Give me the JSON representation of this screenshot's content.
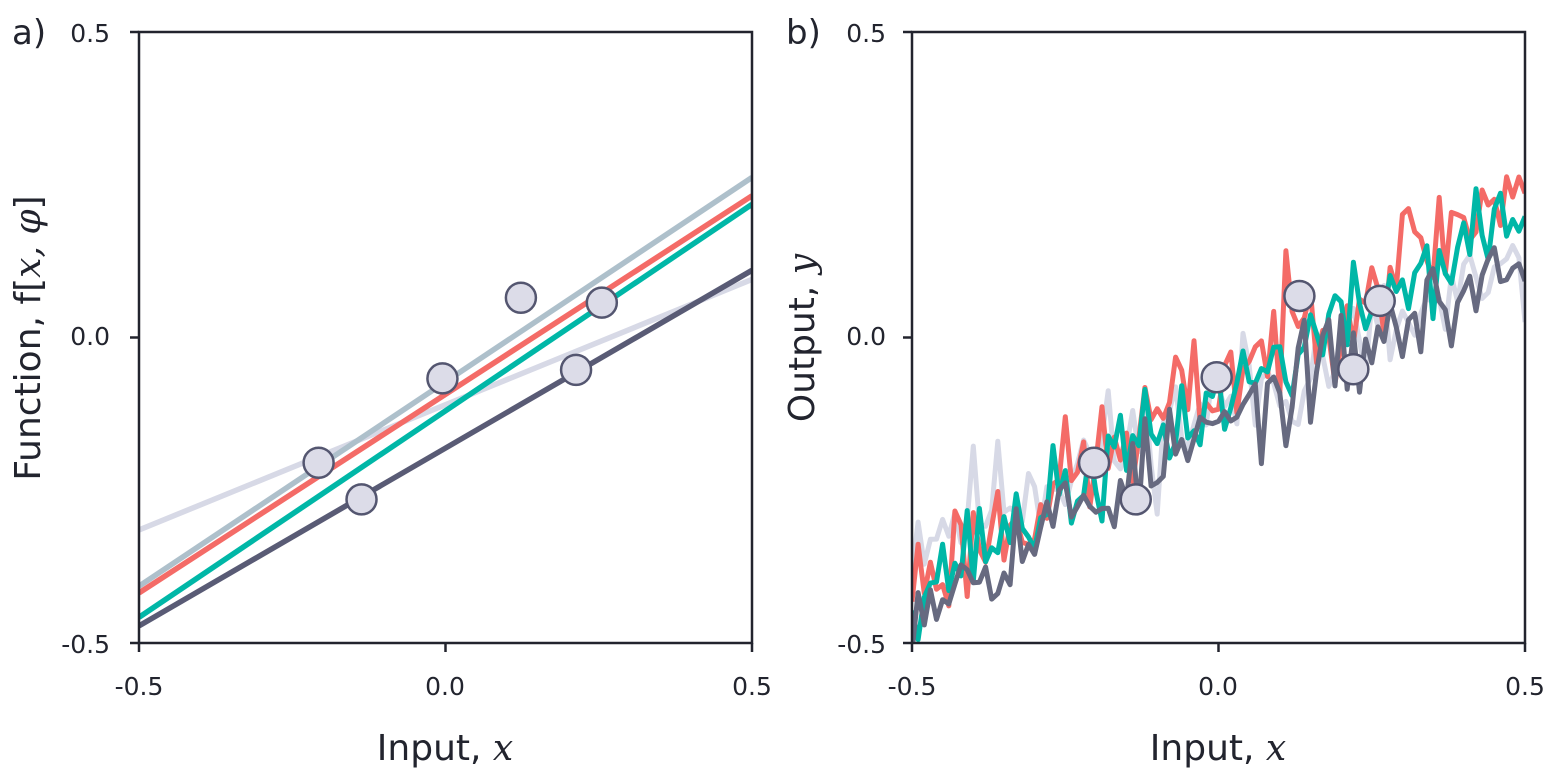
{
  "chart_data": [
    {
      "panel_label": "a)",
      "type": "line",
      "xlabel": "Input,",
      "xlabel_var": "x",
      "ylabel": "Function, f[",
      "ylabel_var": "x, φ",
      "ylabel_close": "]",
      "xlim": [
        -0.5,
        0.5
      ],
      "ylim": [
        -0.5,
        0.5
      ],
      "xticks": [
        "-0.5",
        "0.0",
        "0.5"
      ],
      "yticks": [
        "-0.5",
        "0.0",
        "0.5"
      ],
      "series": [
        {
          "name": "lavender",
          "color": "#d7d9e6",
          "x": [
            -0.5,
            0.5
          ],
          "y": [
            -0.315,
            0.095
          ]
        },
        {
          "name": "gray-blue",
          "color": "#aec0cb",
          "x": [
            -0.5,
            0.5
          ],
          "y": [
            -0.407,
            0.262
          ]
        },
        {
          "name": "coral",
          "color": "#f46b67",
          "x": [
            -0.5,
            0.5
          ],
          "y": [
            -0.418,
            0.232
          ]
        },
        {
          "name": "teal",
          "color": "#00b7a7",
          "x": [
            -0.5,
            0.5
          ],
          "y": [
            -0.458,
            0.218
          ]
        },
        {
          "name": "slate",
          "color": "#595b75",
          "x": [
            -0.5,
            0.5
          ],
          "y": [
            -0.472,
            0.11
          ]
        }
      ],
      "points": {
        "color": "#dcdce8",
        "edge_color": "#545670",
        "x": [
          -0.207,
          -0.137,
          -0.005,
          0.123,
          0.213,
          0.255
        ],
        "y": [
          -0.205,
          -0.265,
          -0.067,
          0.065,
          -0.053,
          0.057
        ]
      }
    },
    {
      "panel_label": "b)",
      "type": "line",
      "xlabel": "Input,",
      "xlabel_var": "x",
      "ylabel": "Output,",
      "ylabel_var": "y",
      "xlim": [
        -0.5,
        0.5
      ],
      "ylim": [
        -0.5,
        0.5
      ],
      "xticks": [
        "-0.5",
        "0.0",
        "0.5"
      ],
      "yticks": [
        "-0.5",
        "0.0",
        "0.5"
      ],
      "noisy_series": [
        {
          "name": "lavender",
          "color": "#d7d9e6",
          "start": -0.32,
          "slope": 0.42,
          "noise": 0.05,
          "seed": 11
        },
        {
          "name": "coral",
          "color": "#f46b67",
          "start": -0.4,
          "slope": 0.66,
          "noise": 0.05,
          "seed": 23
        },
        {
          "name": "teal",
          "color": "#00b7a7",
          "start": -0.41,
          "slope": 0.62,
          "noise": 0.04,
          "seed": 37
        },
        {
          "name": "slate",
          "color": "#676a80",
          "start": -0.43,
          "slope": 0.56,
          "noise": 0.04,
          "seed": 53
        }
      ],
      "points": {
        "color": "#dcdce8",
        "edge_color": "#545670",
        "x": [
          -0.203,
          -0.135,
          -0.003,
          0.132,
          0.22,
          0.263
        ],
        "y": [
          -0.205,
          -0.265,
          -0.065,
          0.068,
          -0.052,
          0.06
        ]
      }
    }
  ]
}
